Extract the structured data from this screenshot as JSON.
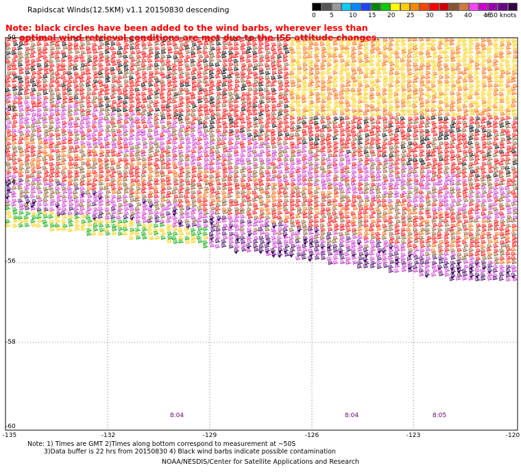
{
  "title": "Rapidscat Winds(12.5KM) v1.1 20150830 descending",
  "note_lines": [
    "Note: black circles have been added to the wind barbs, wherever less than",
    "optimal wind retrieval conditions are met due to the ISS attitude changes."
  ],
  "legend": {
    "colors": [
      "#000000",
      "#555555",
      "#999999",
      "#00ccff",
      "#0088ff",
      "#2244ff",
      "#008800",
      "#00cc00",
      "#ffff00",
      "#ffcc00",
      "#ff8800",
      "#ff4400",
      "#ff0000",
      "#cc0000",
      "#885533",
      "#cc7744",
      "#ff44ff",
      "#cc00cc",
      "#9900aa",
      "#660088",
      "#330044"
    ],
    "labels": [
      "0",
      "5",
      "10",
      "15",
      "20",
      "25",
      "30",
      "35",
      "40",
      "45",
      ">50 knots"
    ]
  },
  "lat_labels": [
    "-50",
    "-52",
    "-54",
    "-56",
    "-58",
    "-60"
  ],
  "lon_labels": [
    "-135",
    "-132",
    "-129",
    "-126",
    "-123",
    "-120"
  ],
  "time_labels": [
    "8:04",
    "8:04",
    "8:05"
  ],
  "footnote_lines": [
    "Note: 1) Times are GMT 2)Times along bottom correspond to measurement at ~50S",
    "3)Data buffer is 22 hrs from 20150830 4) Black wind barbs indicate possible contamination"
  ],
  "credit": "NOAA/NESDIS/Center for Satellite Applications and Research",
  "wind_colors": {
    "calm": "#00aa00",
    "light": "#ffcc00",
    "moderate": "#ff6600",
    "fresh": "#ff0000",
    "strong": "#8b5a2b",
    "gale": "#cc33cc",
    "storm": "#440066",
    "contaminated": "#000000"
  }
}
